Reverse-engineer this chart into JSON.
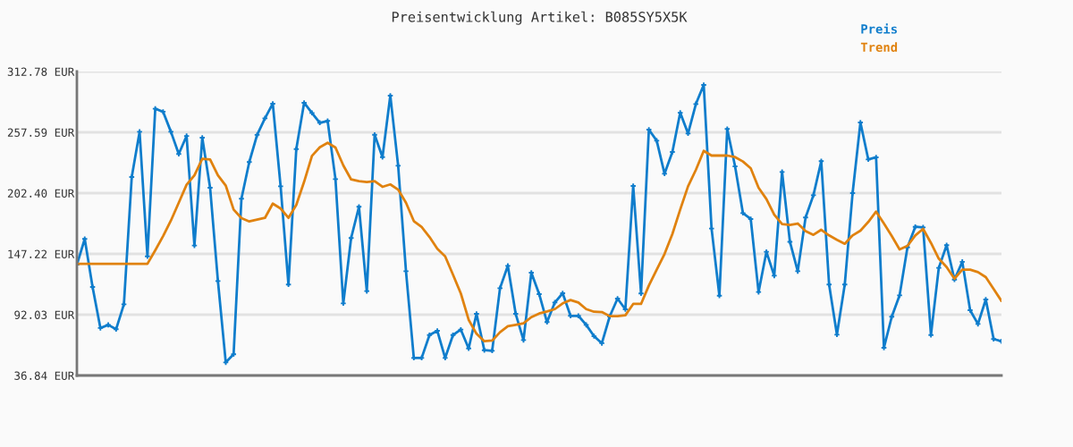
{
  "chart_data": {
    "type": "line",
    "title": "Preisentwicklung Artikel: B085SY5X5K",
    "categories": [
      null,
      null,
      null,
      null,
      null,
      null,
      null,
      null,
      null,
      null,
      null,
      null,
      null,
      null,
      null,
      null,
      null,
      null,
      null,
      null,
      null,
      null,
      null,
      null,
      null,
      null,
      null,
      null,
      null,
      null,
      null,
      null,
      null,
      null,
      null,
      null,
      null,
      null,
      null,
      null,
      null,
      null,
      null,
      null,
      null,
      null,
      null,
      null,
      null,
      null,
      null,
      null,
      null,
      null,
      null,
      null,
      null,
      null,
      null,
      null,
      null,
      null,
      null,
      null,
      null,
      null,
      null,
      null,
      null,
      null,
      null,
      null,
      null,
      null,
      null,
      null,
      null,
      null,
      null,
      null,
      null,
      null,
      null,
      null,
      null,
      null,
      null,
      null,
      null,
      null,
      null,
      null,
      null,
      null,
      null,
      null,
      null,
      null,
      null,
      null,
      null,
      null,
      null,
      null,
      null,
      null,
      null,
      null,
      null,
      null,
      null,
      null,
      null,
      null,
      null,
      null,
      null,
      null,
      null
    ],
    "series": [
      {
        "name": "Preis",
        "color": "#0f7dcc",
        "marker": "cross",
        "values": [
          137.5,
          160.8,
          117.2,
          79.9,
          82.8,
          78.8,
          101.5,
          217.0,
          258.1,
          145.0,
          279.0,
          276.3,
          258.1,
          237.9,
          254.3,
          154.8,
          252.7,
          207.3,
          122.6,
          48.7,
          56.1,
          197.3,
          230.6,
          255.2,
          270.3,
          283.6,
          208.6,
          119.4,
          242.4,
          284.4,
          275.2,
          266.3,
          267.9,
          215.1,
          102.3,
          161.6,
          190.0,
          113.4,
          255.4,
          235.1,
          290.9,
          227.3,
          131.5,
          52.8,
          52.8,
          73.6,
          77.4,
          52.8,
          73.6,
          78.5,
          61.4,
          92.8,
          59.8,
          59.3,
          116.1,
          136.4,
          92.8,
          69.0,
          130.2,
          110.7,
          85.3,
          103.1,
          111.5,
          91.0,
          91.0,
          82.8,
          72.5,
          66.1,
          90.4,
          106.6,
          96.9,
          208.9,
          111.3,
          260.0,
          250.0,
          220.0,
          239.7,
          275.4,
          256.5,
          283.3,
          300.6,
          170.2,
          109.3,
          260.6,
          226.7,
          184.3,
          178.9,
          112.6,
          149.1,
          127.4,
          221.6,
          158.2,
          131.5,
          180.3,
          200.5,
          231.4,
          119.4,
          73.9,
          119.4,
          202.4,
          266.5,
          233.0,
          234.9,
          62.0,
          90.2,
          109.6,
          153.1,
          171.8,
          171.3,
          73.6,
          134.5,
          155.1,
          123.9,
          140.0,
          96.1,
          83.6,
          105.8,
          69.9,
          67.9
        ]
      },
      {
        "name": "Trend",
        "color": "#e0820f",
        "marker": "none",
        "values": [
          138.2,
          138.2,
          138.2,
          138.2,
          138.2,
          138.2,
          138.2,
          138.2,
          138.2,
          138.2,
          150.5,
          163.4,
          177.5,
          193.7,
          210.0,
          218.6,
          233.5,
          233.0,
          218.6,
          209.2,
          187.5,
          179.7,
          176.7,
          178.3,
          179.9,
          192.9,
          188.4,
          179.9,
          191.6,
          212.7,
          236.2,
          244.0,
          248.1,
          243.8,
          227.6,
          214.8,
          213.2,
          212.4,
          213.2,
          208.1,
          210.3,
          205.6,
          193.7,
          177.0,
          171.6,
          162.6,
          151.8,
          145.0,
          128.3,
          111.3,
          87.4,
          74.7,
          67.9,
          68.5,
          76.1,
          81.5,
          82.8,
          84.2,
          89.8,
          93.1,
          95.0,
          97.1,
          102.3,
          105.3,
          103.1,
          97.1,
          94.7,
          94.4,
          90.7,
          90.7,
          91.5,
          101.8,
          101.8,
          118.5,
          132.9,
          147.2,
          165.3,
          187.5,
          208.6,
          223.5,
          240.8,
          236.5,
          236.5,
          236.5,
          235.1,
          231.1,
          224.9,
          207.3,
          197.0,
          182.9,
          174.3,
          173.4,
          174.8,
          168.0,
          164.5,
          169.1,
          164.0,
          160.0,
          156.4,
          164.0,
          168.3,
          176.2,
          185.6,
          174.8,
          163.4,
          151.3,
          154.5,
          164.0,
          169.9,
          157.2,
          142.9,
          135.3,
          124.7,
          132.9,
          132.9,
          130.7,
          126.1,
          115.3,
          104.5
        ]
      }
    ],
    "ylim": [
      36.84,
      312.78
    ],
    "yticks": [
      {
        "value": 36.84,
        "label": "36.84 EUR"
      },
      {
        "value": 92.03,
        "label": "92.03 EUR"
      },
      {
        "value": 147.22,
        "label": "147.22 EUR"
      },
      {
        "value": 202.4,
        "label": "202.40 EUR"
      },
      {
        "value": 257.59,
        "label": "257.59 EUR"
      },
      {
        "value": 312.78,
        "label": "312.78 EUR"
      }
    ],
    "grid": "y",
    "legend": "top right",
    "line_style": "solid"
  }
}
